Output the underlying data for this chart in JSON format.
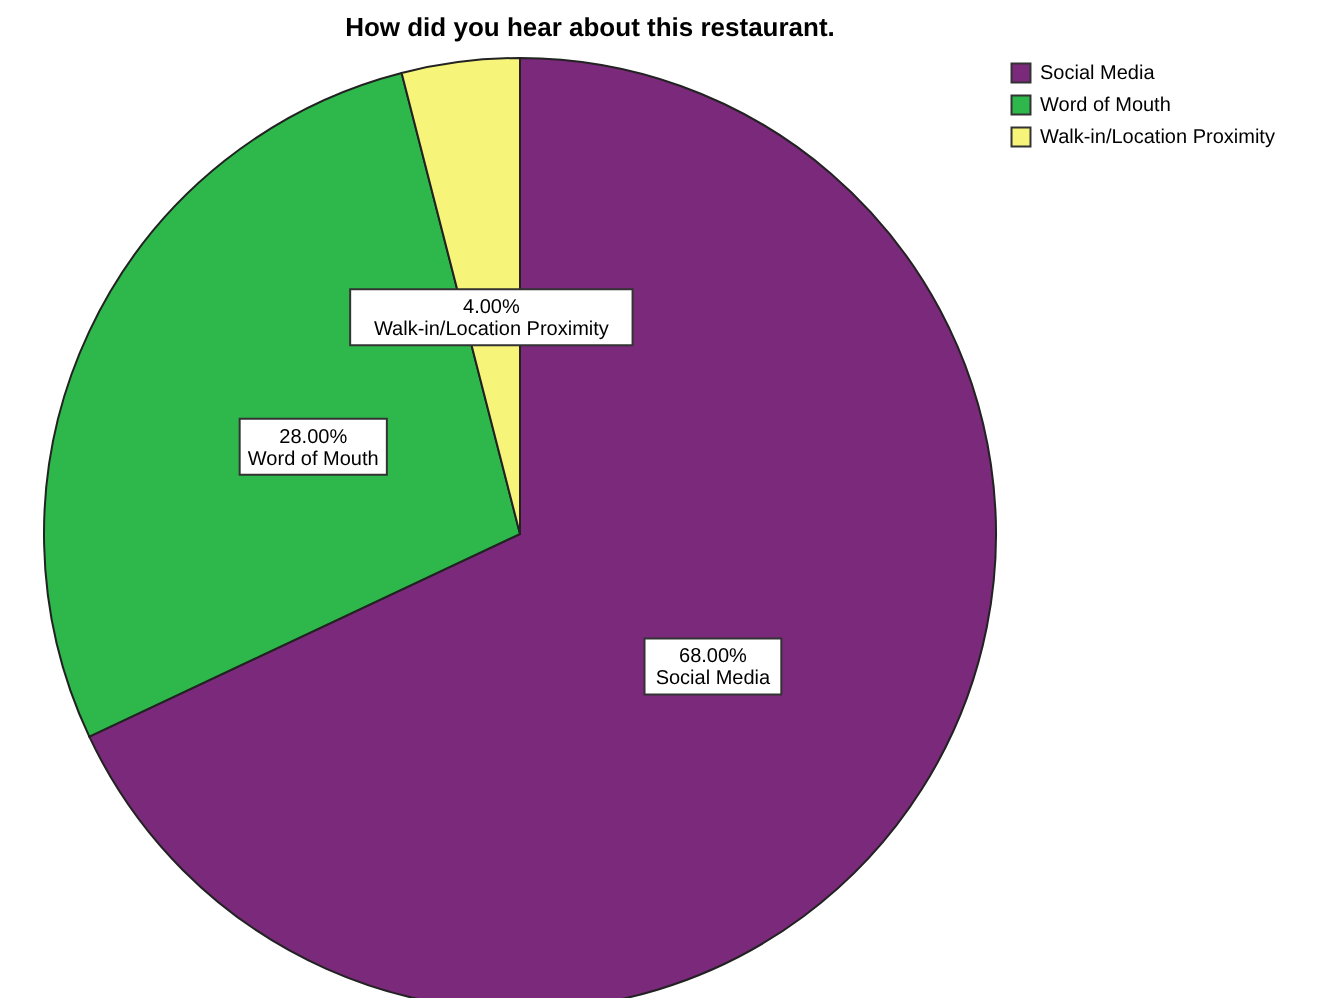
{
  "chart_data": {
    "type": "pie",
    "title": "How did you hear about this restaurant.",
    "categories": [
      "Social Media",
      "Word of Mouth",
      "Walk-in/Location Proximity"
    ],
    "values": [
      68,
      28,
      4
    ],
    "colors": [
      "#7a297b",
      "#2eb84b",
      "#f7f47a"
    ],
    "value_labels": [
      "68.00%",
      "28.00%",
      "4.00%"
    ],
    "legend": "top right"
  }
}
